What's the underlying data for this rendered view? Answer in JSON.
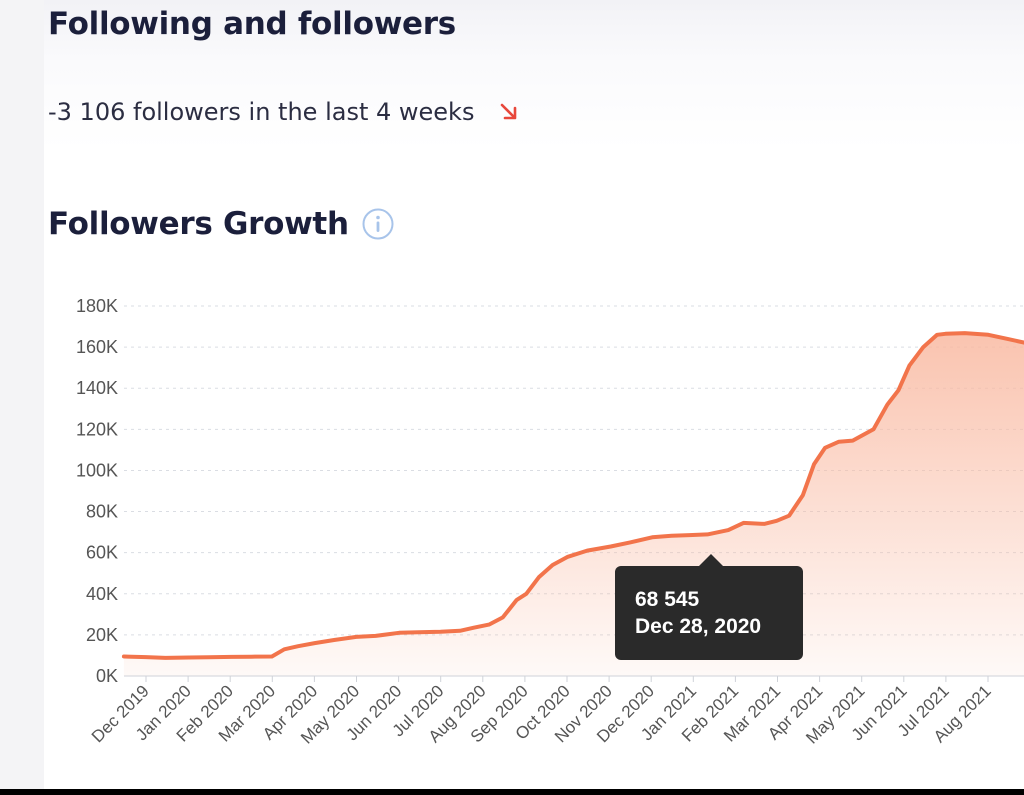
{
  "header": {
    "title": "Following and followers",
    "stat_text": "-3 106 followers in the last 4 weeks",
    "trend": "down",
    "trend_color": "#e8473b"
  },
  "section": {
    "title": "Followers Growth",
    "info_icon": "info-icon"
  },
  "tooltip": {
    "value": "68 545",
    "date": "Dec 28, 2020"
  },
  "chart_data": {
    "type": "area",
    "title": "Followers Growth",
    "xlabel": "",
    "ylabel": "",
    "ylim": [
      0,
      180000
    ],
    "yticks": [
      0,
      20000,
      40000,
      60000,
      80000,
      100000,
      120000,
      140000,
      160000,
      180000
    ],
    "ytick_labels": [
      "0K",
      "20K",
      "40K",
      "60K",
      "80K",
      "100K",
      "120K",
      "140K",
      "160K",
      "180K"
    ],
    "xtick_labels": [
      "Dec 2019",
      "Jan 2020",
      "Feb 2020",
      "Mar 2020",
      "Apr 2020",
      "May 2020",
      "Jun 2020",
      "Jul 2020",
      "Aug 2020",
      "Sep 2020",
      "Oct 2020",
      "Nov 2020",
      "Dec 2020",
      "Jan 2021",
      "Feb 2021",
      "Mar 2021",
      "Apr 2021",
      "May 2021",
      "Jun 2021",
      "Jul 2021",
      "Aug 2021"
    ],
    "grid": true,
    "legend": "none",
    "line_color": "#f2744b",
    "fill_color": "#f9b9a1",
    "series": [
      {
        "name": "",
        "x": [
          "2019-11-15",
          "2019-12-01",
          "2019-12-15",
          "2020-01-01",
          "2020-01-15",
          "2020-02-01",
          "2020-02-15",
          "2020-03-01",
          "2020-03-10",
          "2020-03-20",
          "2020-04-01",
          "2020-04-15",
          "2020-05-01",
          "2020-05-15",
          "2020-06-01",
          "2020-06-15",
          "2020-07-01",
          "2020-07-15",
          "2020-07-25",
          "2020-08-05",
          "2020-08-15",
          "2020-08-25",
          "2020-09-01",
          "2020-09-10",
          "2020-09-20",
          "2020-10-01",
          "2020-10-15",
          "2020-11-01",
          "2020-11-15",
          "2020-12-01",
          "2020-12-15",
          "2020-12-28",
          "2021-01-10",
          "2021-01-25",
          "2021-02-05",
          "2021-02-20",
          "2021-03-01",
          "2021-03-10",
          "2021-03-20",
          "2021-03-28",
          "2021-04-05",
          "2021-04-15",
          "2021-04-25",
          "2021-05-10",
          "2021-05-20",
          "2021-05-28",
          "2021-06-05",
          "2021-06-15",
          "2021-06-25",
          "2021-07-01",
          "2021-07-15",
          "2021-08-01",
          "2021-08-15",
          "2021-08-31"
        ],
        "y": [
          9500,
          9200,
          8800,
          9000,
          9100,
          9300,
          9400,
          9500,
          13000,
          14500,
          16000,
          17500,
          19000,
          19500,
          21000,
          21300,
          21500,
          22000,
          23500,
          25000,
          28500,
          37000,
          40000,
          48000,
          54000,
          58000,
          61000,
          63000,
          65000,
          67500,
          68200,
          68545,
          68900,
          71000,
          74500,
          74000,
          75500,
          78000,
          88000,
          103000,
          111000,
          114000,
          114500,
          120000,
          132000,
          139000,
          151000,
          160000,
          166000,
          166500,
          166800,
          166000,
          164000,
          162000
        ]
      }
    ]
  }
}
